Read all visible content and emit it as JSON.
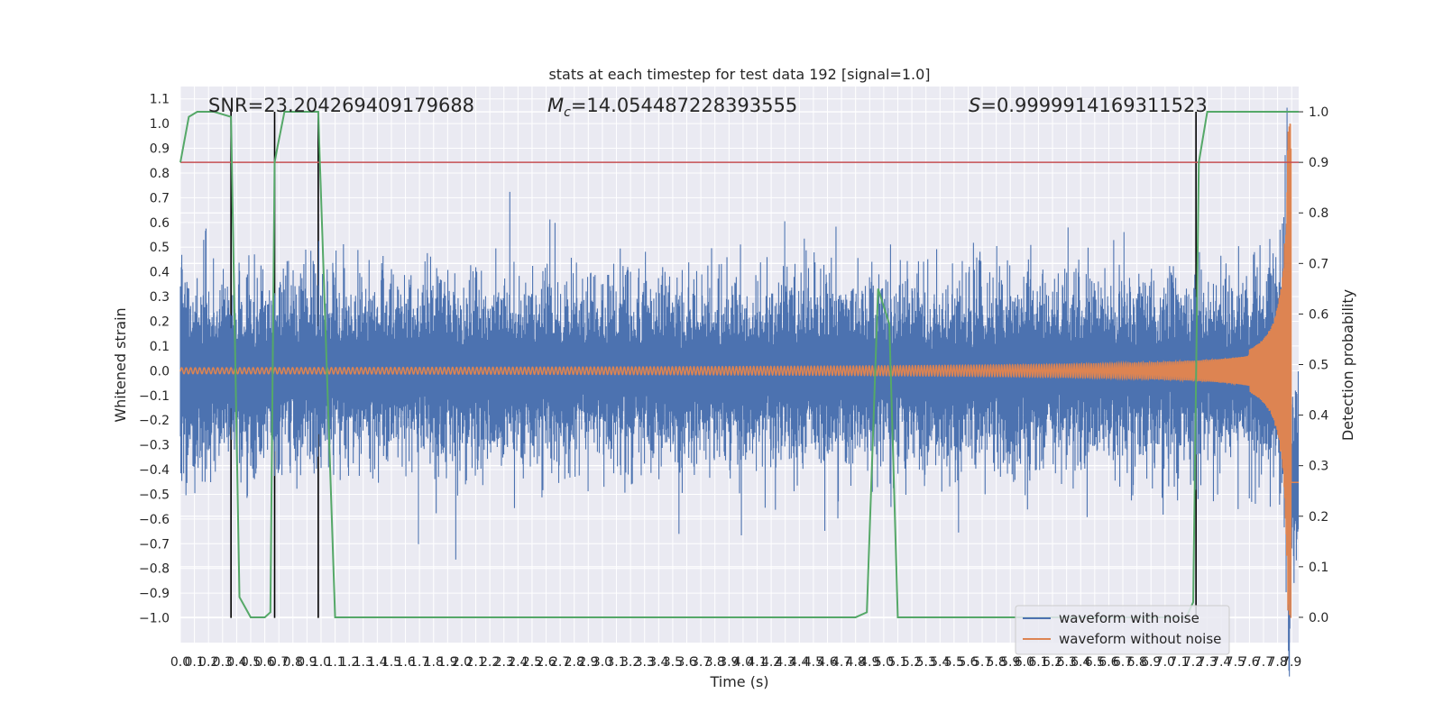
{
  "chart_data": {
    "type": "line",
    "title": "stats at each timestep for test data 192 [signal=1.0]",
    "xlabel": "Time (s)",
    "ylabel": "Whitened strain",
    "ylabel_right": "Detection probability",
    "xlim": [
      0.0,
      7.95
    ],
    "ylim": [
      -1.1,
      1.15
    ],
    "ylim_right": [
      -0.05,
      1.05
    ],
    "x_ticks": [
      "0.0",
      "0.1",
      "0.2",
      "0.3",
      "0.4",
      "0.5",
      "0.6",
      "0.7",
      "0.8",
      "0.9",
      "1.0",
      "1.1",
      "1.2",
      "1.3",
      "1.4",
      "1.5",
      "1.6",
      "1.7",
      "1.8",
      "1.9",
      "2.0",
      "2.1",
      "2.2",
      "2.3",
      "2.4",
      "2.5",
      "2.6",
      "2.7",
      "2.8",
      "2.9",
      "3.0",
      "3.1",
      "3.2",
      "3.3",
      "3.4",
      "3.5",
      "3.6",
      "3.7",
      "3.8",
      "3.9",
      "4.0",
      "4.1",
      "4.2",
      "4.3",
      "4.4",
      "4.5",
      "4.6",
      "4.7",
      "4.8",
      "4.9",
      "5.0",
      "5.1",
      "5.2",
      "5.3",
      "5.4",
      "5.5",
      "5.6",
      "5.7",
      "5.8",
      "5.9",
      "6.0",
      "6.1",
      "6.2",
      "6.3",
      "6.4",
      "6.5",
      "6.6",
      "6.7",
      "6.8",
      "6.9",
      "7.0",
      "7.1",
      "7.2",
      "7.3",
      "7.4",
      "7.5",
      "7.6",
      "7.7",
      "7.8",
      "7.9"
    ],
    "y_ticks": [
      "1.1",
      "1.0",
      "0.9",
      "0.8",
      "0.7",
      "0.6",
      "0.5",
      "0.4",
      "0.3",
      "0.2",
      "0.1",
      "0.0",
      "-0.1",
      "-0.2",
      "-0.3",
      "-0.4",
      "-0.5",
      "-0.6",
      "-0.7",
      "-0.8",
      "-0.9",
      "-1.0"
    ],
    "y_ticks_right": [
      "1.0",
      "0.9",
      "0.8",
      "0.7",
      "0.6",
      "0.5",
      "0.4",
      "0.3",
      "0.2",
      "0.1",
      "0.0"
    ],
    "annotations": {
      "snr": "SNR=23.204269409179688",
      "mc_prefix": "M",
      "mc_sub": "c",
      "mc_value": "=14.054487228393555",
      "s_prefix": "S",
      "s_value": "=0.9999914169311523"
    },
    "threshold_line": {
      "y_right": 0.9,
      "color": "#c44e52"
    },
    "vertical_markers_x": [
      0.36,
      0.67,
      0.98,
      7.22
    ],
    "series": [
      {
        "name": "waveform with noise",
        "color": "#4c72b0",
        "noise_std": 0.2
      },
      {
        "name": "waveform without noise",
        "color": "#dd8452",
        "chirp_end_x": 7.9,
        "chirp_peak": 1.0
      },
      {
        "name": "",
        "color": "#55a868",
        "axis": "right",
        "x": [
          0.0,
          0.06,
          0.12,
          0.24,
          0.36,
          0.42,
          0.5,
          0.6,
          0.64,
          0.67,
          0.69,
          0.74,
          0.8,
          0.98,
          1.1,
          1.2,
          4.8,
          4.88,
          4.96,
          5.04,
          5.1,
          5.2,
          5.4,
          7.15,
          7.2,
          7.24,
          7.3,
          7.95
        ],
        "y": [
          0.9,
          0.99,
          1.0,
          1.0,
          0.99,
          0.04,
          0.0,
          0.0,
          0.01,
          0.9,
          0.93,
          1.0,
          1.0,
          1.0,
          0.0,
          0.0,
          0.0,
          0.01,
          0.65,
          0.58,
          0.0,
          0.0,
          0.0,
          0.0,
          0.03,
          0.9,
          1.0,
          1.0
        ]
      }
    ],
    "legend": {
      "placement": "lower-right",
      "entries": [
        "waveform with noise",
        "waveform without noise"
      ]
    },
    "grid": true,
    "background": "#eaeaf2"
  }
}
